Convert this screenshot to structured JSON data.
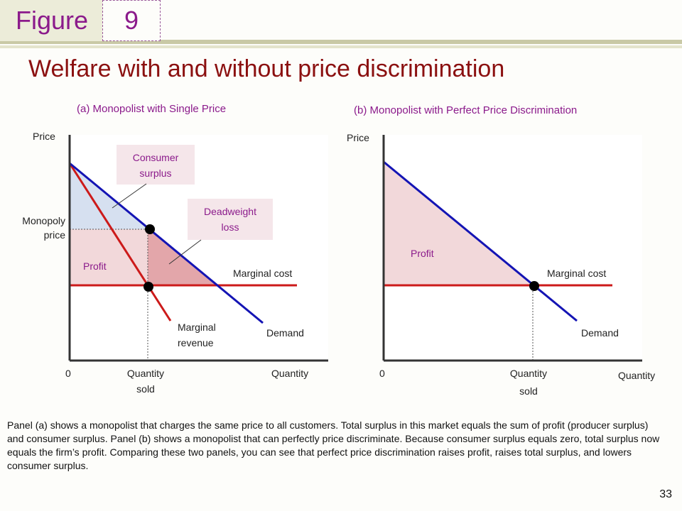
{
  "header": {
    "figure_label": "Figure",
    "figure_number": "9",
    "title": "Welfare with and without price discrimination"
  },
  "panel_a": {
    "title": "(a) Monopolist with Single Price",
    "y_axis_label": "Price",
    "x_axis_label": "Quantity",
    "origin_label": "0",
    "monopoly_price_label": [
      "Monopoly",
      "price"
    ],
    "quantity_sold_label": [
      "Quantity",
      "sold"
    ],
    "consumer_surplus_label": [
      "Consumer",
      "surplus"
    ],
    "deadweight_loss_label": [
      "Deadweight",
      "loss"
    ],
    "profit_label": "Profit",
    "marginal_cost_label": "Marginal cost",
    "marginal_revenue_label": [
      "Marginal",
      "revenue"
    ],
    "demand_label": "Demand"
  },
  "panel_b": {
    "title": "(b) Monopolist with Perfect Price Discrimination",
    "y_axis_label": "Price",
    "x_axis_label": "Quantity",
    "origin_label": "0",
    "quantity_sold_label": [
      "Quantity",
      "sold"
    ],
    "profit_label": "Profit",
    "marginal_cost_label": "Marginal cost",
    "demand_label": "Demand"
  },
  "caption": "Panel (a) shows a monopolist that charges the same price to all customers. Total surplus in this market equals the sum of profit (producer surplus) and consumer surplus. Panel (b) shows a monopolist that can perfectly price discriminate. Because consumer surplus equals zero, total surplus now equals the firm’s profit. Comparing these two panels, you can see that perfect price discrimination raises profit, raises total surplus, and lowers consumer surplus.",
  "page_number": "33",
  "colors": {
    "demand": "#1414b4",
    "marginal_revenue": "#cc1a1a",
    "marginal_cost": "#cc1a1a",
    "consumer_surplus_fill": "#d6e0f0",
    "profit_fill": "#f2d8da",
    "deadweight_fill": "#e3a6aa",
    "title": "#8b1010",
    "accent": "#8b1a8b"
  }
}
